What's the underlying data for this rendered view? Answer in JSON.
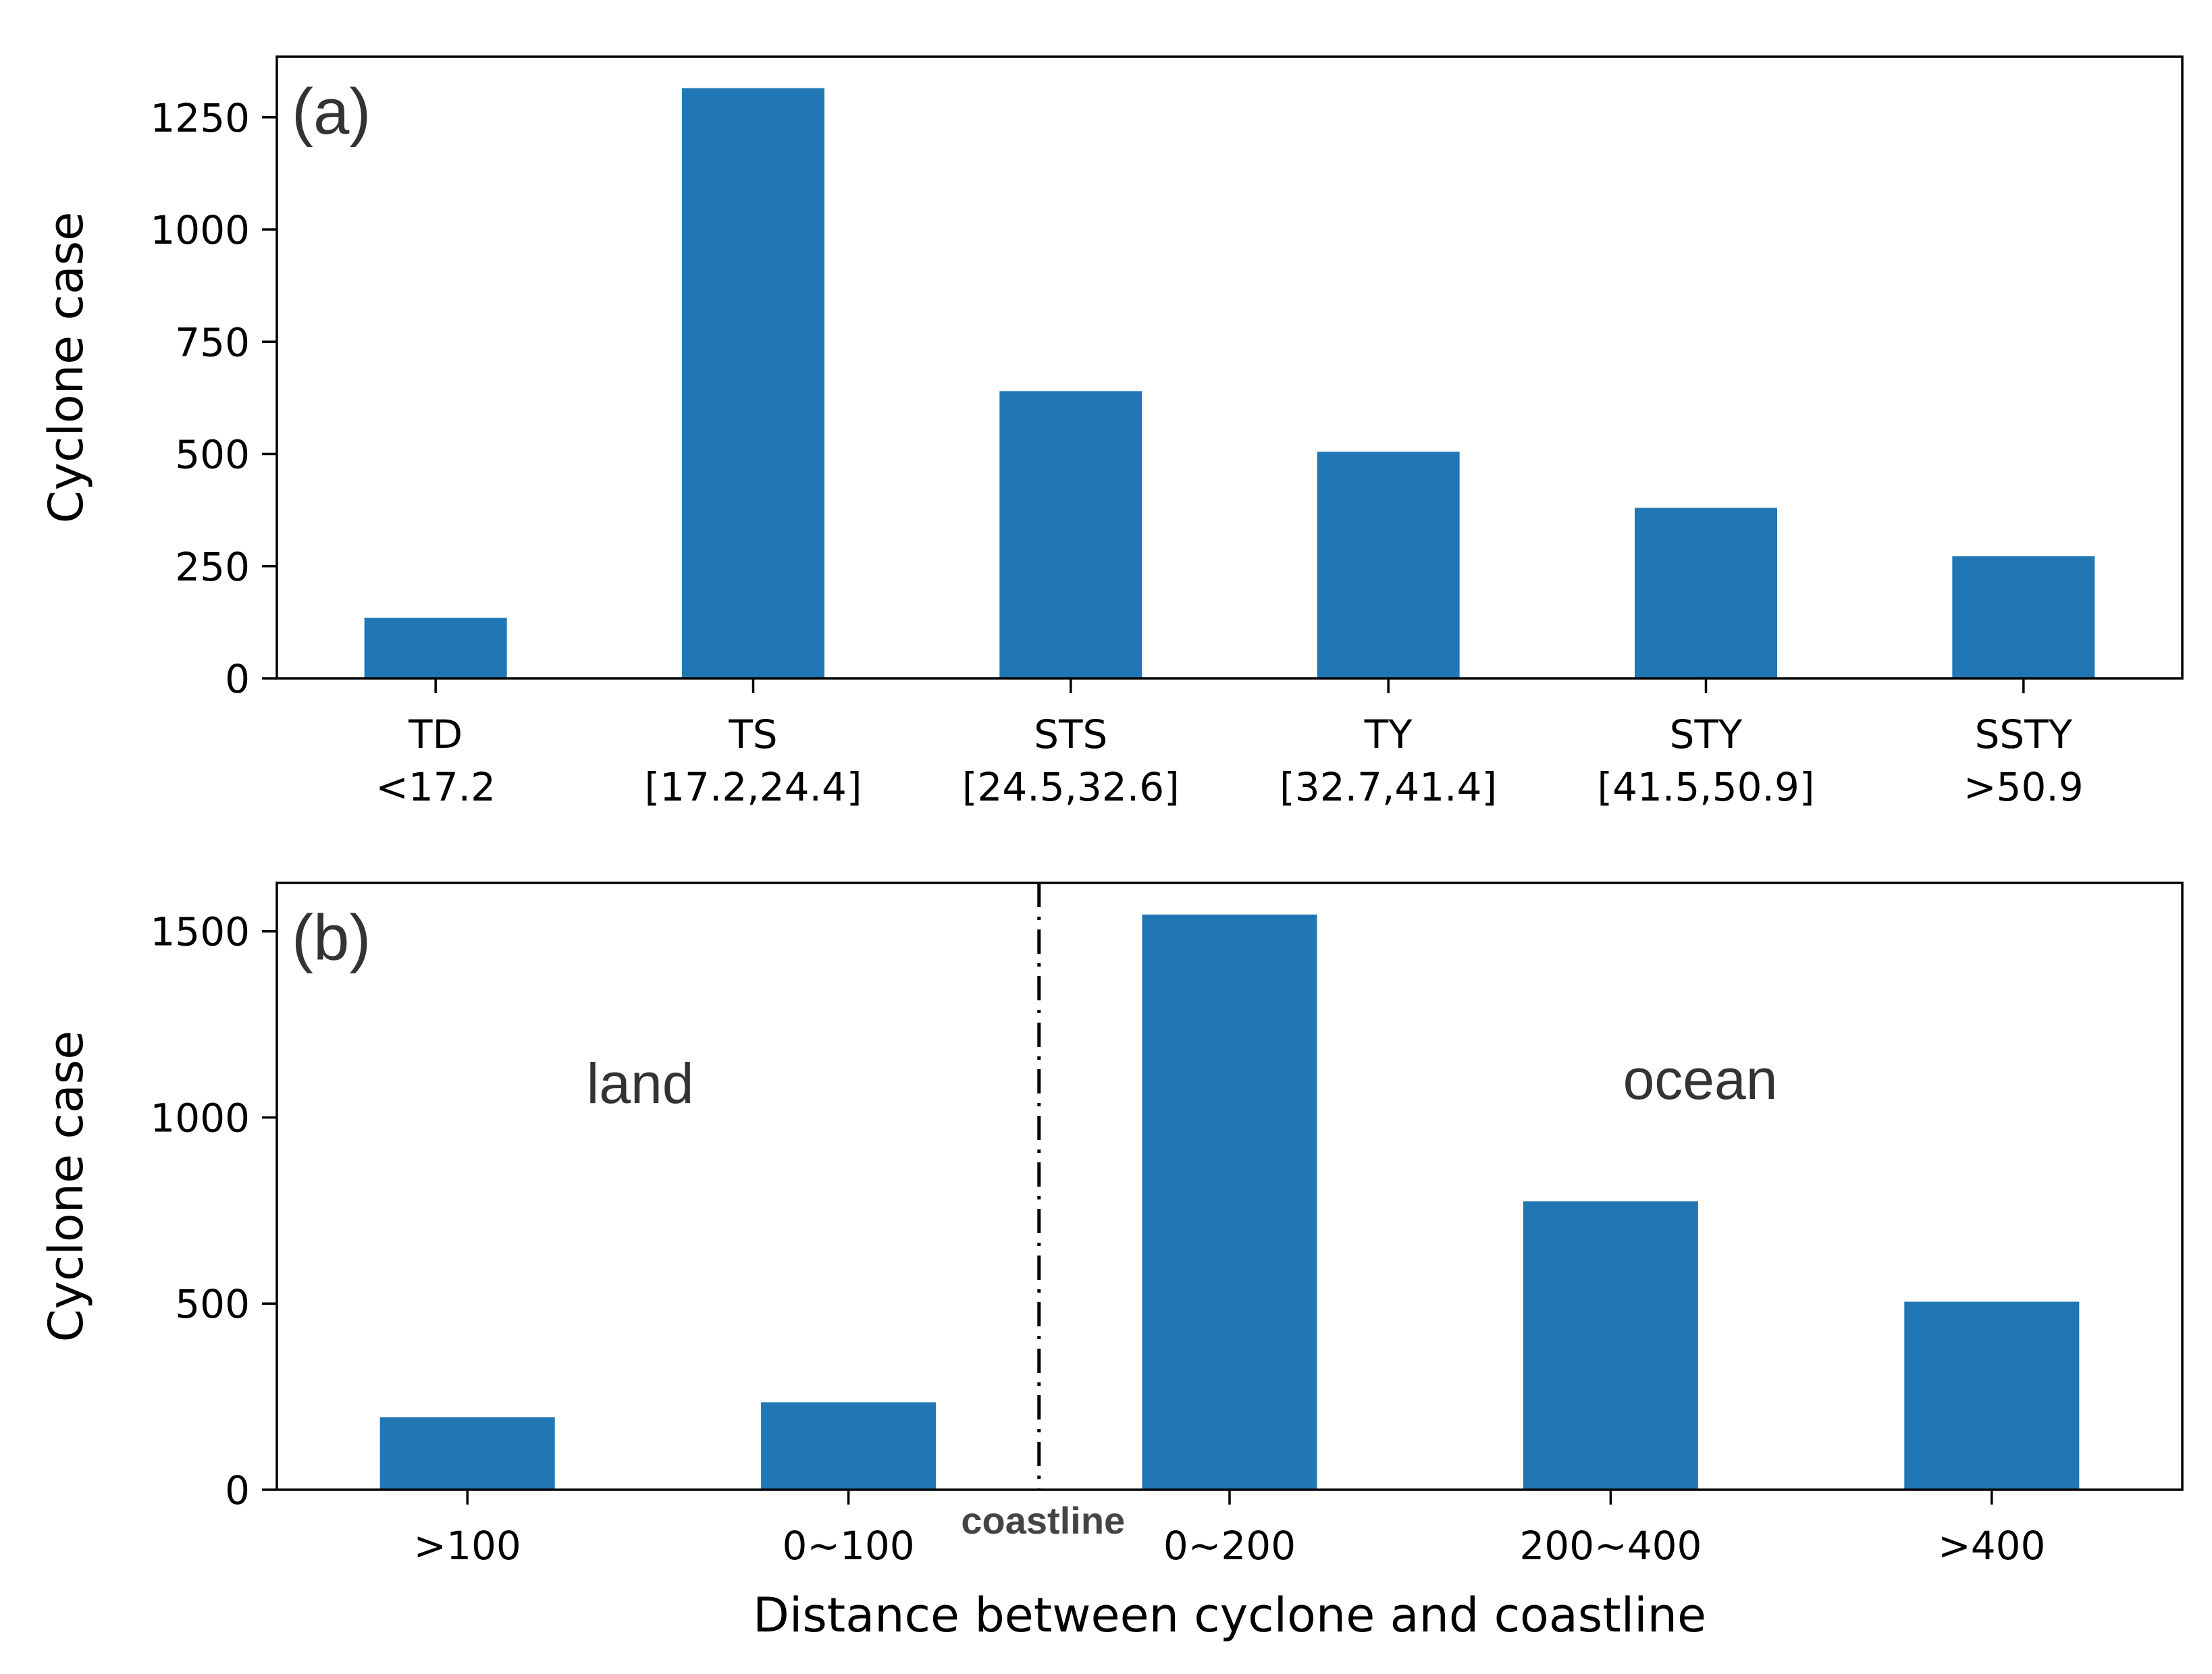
{
  "chart_data": [
    {
      "type": "bar",
      "panel": "(a)",
      "categories": [
        "TD\n<17.2",
        "TS\n[17.2,24.4]",
        "STS\n[24.5,32.6]",
        "TY\n[32.7,41.4]",
        "STY\n[41.5,50.9]",
        "SSTY\n>50.9"
      ],
      "values": [
        135,
        1315,
        640,
        505,
        380,
        272
      ],
      "ylabel": "Cyclone case",
      "xlabel": "",
      "ylim": [
        0,
        1385
      ],
      "yticks": [
        0,
        250,
        500,
        750,
        1000,
        1250
      ],
      "color": "#2077b4",
      "grid": false
    },
    {
      "type": "bar",
      "panel": "(b)",
      "categories": [
        ">100",
        "0~100",
        "0~200",
        "200~400",
        ">400"
      ],
      "values": [
        195,
        235,
        1545,
        775,
        505
      ],
      "ylabel": "Cyclone case",
      "xlabel": "Distance between cyclone and coastline",
      "ylim": [
        0,
        1630
      ],
      "yticks": [
        0,
        500,
        1000,
        1500
      ],
      "color": "#2077b4",
      "grid": false,
      "annotations": {
        "land": "land",
        "ocean": "ocean",
        "coastline": "coastline"
      }
    }
  ]
}
